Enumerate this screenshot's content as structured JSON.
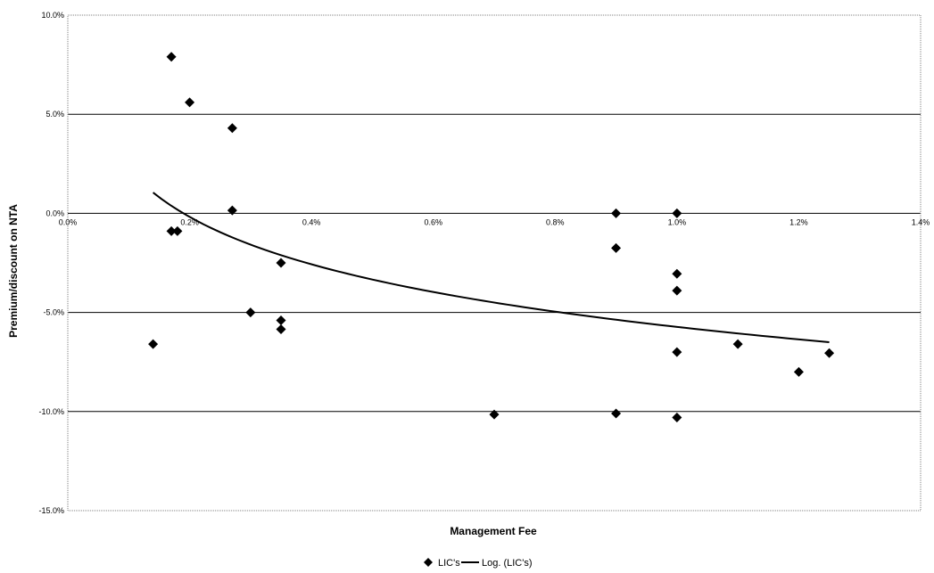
{
  "chart_data": {
    "type": "scatter",
    "xlabel": "Management Fee",
    "ylabel": "Premium/discount on NTA",
    "xlim": [
      0,
      1.4
    ],
    "ylim": [
      -15,
      10
    ],
    "x_unit": "%",
    "y_unit": "%",
    "x_ticks": [
      "0.0%",
      "0.2%",
      "0.4%",
      "0.6%",
      "0.8%",
      "1.0%",
      "1.2%",
      "1.4%"
    ],
    "y_ticks": [
      "10.0%",
      "5.0%",
      "0.0%",
      "-5.0%",
      "-10.0%",
      "-15.0%"
    ],
    "grid": "horizontal",
    "legend_position": "bottom",
    "colors": {
      "points": "#000000",
      "trendline": "#000000",
      "gridlines": "#000000",
      "frame": "#808080"
    },
    "series": [
      {
        "name": "LIC's",
        "kind": "scatter",
        "marker": "diamond",
        "points": [
          {
            "x": 0.14,
            "y": -6.6
          },
          {
            "x": 0.17,
            "y": 7.9
          },
          {
            "x": 0.17,
            "y": -0.9
          },
          {
            "x": 0.18,
            "y": -0.9
          },
          {
            "x": 0.2,
            "y": 5.6
          },
          {
            "x": 0.27,
            "y": 4.3
          },
          {
            "x": 0.27,
            "y": 0.15
          },
          {
            "x": 0.3,
            "y": -5.0
          },
          {
            "x": 0.35,
            "y": -2.5
          },
          {
            "x": 0.35,
            "y": -5.4
          },
          {
            "x": 0.35,
            "y": -5.85
          },
          {
            "x": 0.7,
            "y": -10.15
          },
          {
            "x": 0.9,
            "y": 0.0
          },
          {
            "x": 0.9,
            "y": -1.75
          },
          {
            "x": 0.9,
            "y": -10.1
          },
          {
            "x": 1.0,
            "y": 0.0
          },
          {
            "x": 1.0,
            "y": -3.05
          },
          {
            "x": 1.0,
            "y": -3.9
          },
          {
            "x": 1.0,
            "y": -7.0
          },
          {
            "x": 1.0,
            "y": -10.3
          },
          {
            "x": 1.1,
            "y": -6.6
          },
          {
            "x": 1.2,
            "y": -8.0
          },
          {
            "x": 1.25,
            "y": -7.05
          }
        ]
      },
      {
        "name": "Log. (LIC's)",
        "kind": "trendline",
        "fit": "logarithmic",
        "x_range": [
          0.14,
          1.25
        ],
        "y_range": [
          1.05,
          -6.5
        ]
      }
    ]
  },
  "legend": {
    "items": [
      {
        "label": "LIC's",
        "symbol": "diamond"
      },
      {
        "label": "Log. (LIC's)",
        "symbol": "line"
      }
    ]
  }
}
